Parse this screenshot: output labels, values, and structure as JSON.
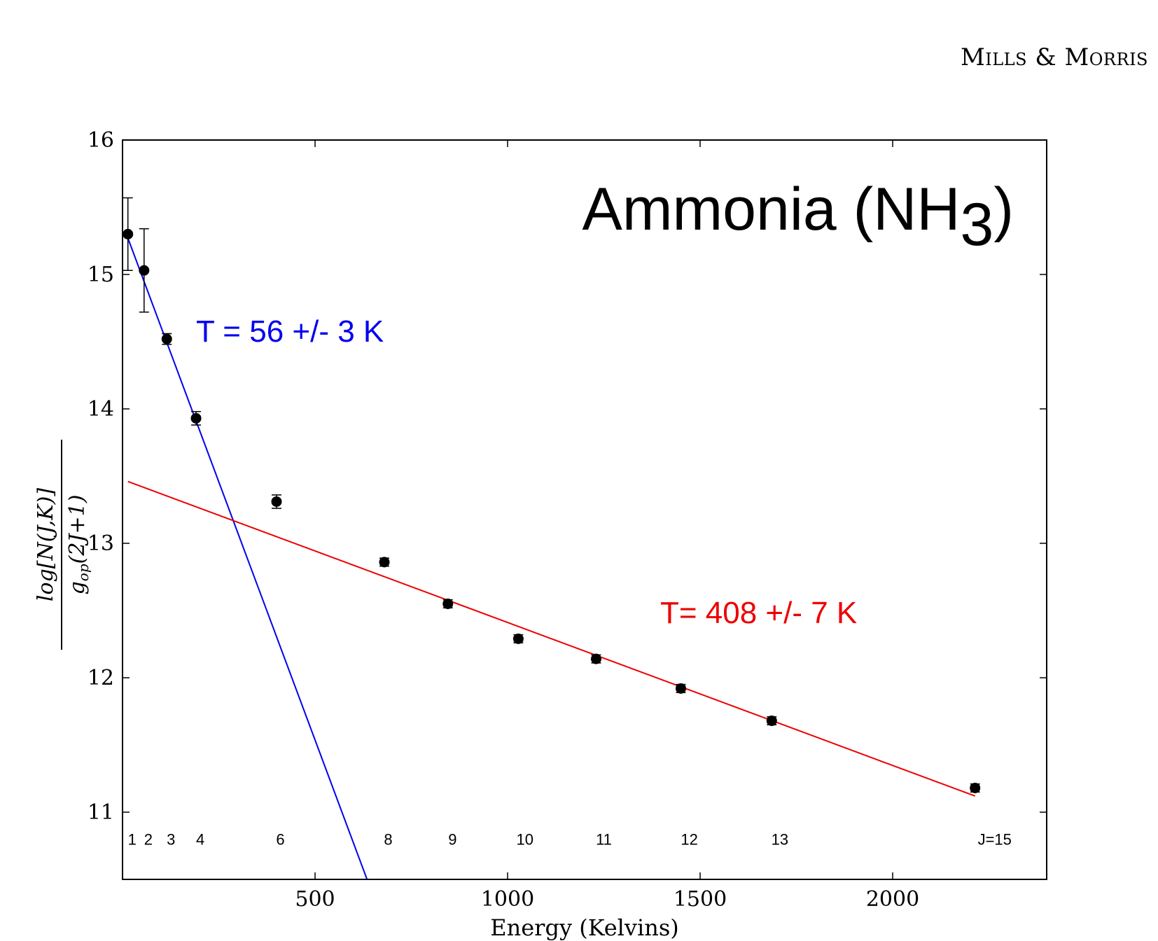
{
  "header": {
    "author": "Mills & Morris"
  },
  "chart_data": {
    "type": "scatter",
    "title": "Ammonia (NH",
    "title_subscript": "3",
    "title_close": ")",
    "xlabel": "Energy (Kelvins)",
    "ylabel": {
      "lead": "log",
      "numerator": "[N(J,K)]",
      "denominator": "g",
      "denominator_subscript": "op",
      "denominator_tail": "(2J+1)"
    },
    "xlim": [
      0,
      2400
    ],
    "ylim": [
      10.5,
      16
    ],
    "xticks": [
      500,
      1000,
      1500,
      2000
    ],
    "yticks": [
      11,
      12,
      13,
      14,
      15,
      16
    ],
    "grid": false,
    "points": [
      {
        "x": 14,
        "y": 15.3,
        "err": 0.27
      },
      {
        "x": 56,
        "y": 15.03,
        "err": 0.31
      },
      {
        "x": 115,
        "y": 14.52,
        "err": 0.04
      },
      {
        "x": 191,
        "y": 13.93,
        "err": 0.05
      },
      {
        "x": 400,
        "y": 13.31,
        "err": 0.05
      },
      {
        "x": 680,
        "y": 12.86,
        "err": 0.03
      },
      {
        "x": 845,
        "y": 12.55,
        "err": 0.03
      },
      {
        "x": 1028,
        "y": 12.29,
        "err": 0.03
      },
      {
        "x": 1230,
        "y": 12.14,
        "err": 0.03
      },
      {
        "x": 1450,
        "y": 11.92,
        "err": 0.03
      },
      {
        "x": 1686,
        "y": 11.68,
        "err": 0.03
      },
      {
        "x": 2214,
        "y": 11.18,
        "err": 0.03
      }
    ],
    "fits": [
      {
        "label": "T = 56 +/- 3 K",
        "color": "#0000ee",
        "x": [
          14,
          635
        ],
        "y": [
          15.27,
          10.5
        ]
      },
      {
        "label": "T= 408 +/- 7 K",
        "color": "#ee0000",
        "x": [
          14,
          2214
        ],
        "y": [
          13.46,
          11.12
        ]
      }
    ],
    "j_labels": [
      {
        "text": "1",
        "x": 25
      },
      {
        "text": "2",
        "x": 67
      },
      {
        "text": "3",
        "x": 126
      },
      {
        "text": "4",
        "x": 202
      },
      {
        "text": "6",
        "x": 410
      },
      {
        "text": "8",
        "x": 690
      },
      {
        "text": "9",
        "x": 857
      },
      {
        "text": "10",
        "x": 1045
      },
      {
        "text": "11",
        "x": 1250
      },
      {
        "text": "12",
        "x": 1472
      },
      {
        "text": "13",
        "x": 1707
      },
      {
        "text": "J=15",
        "x": 2265
      }
    ],
    "j_label_y": 10.8
  }
}
